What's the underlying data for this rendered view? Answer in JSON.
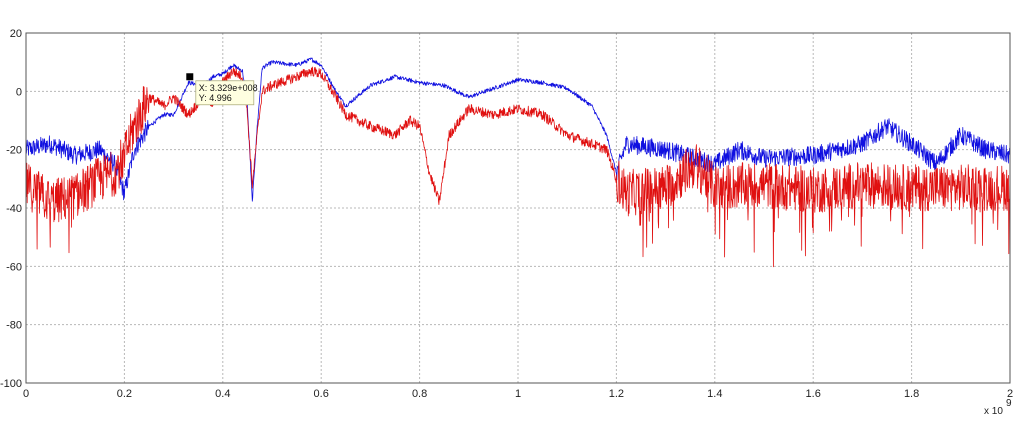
{
  "chart_data": {
    "type": "line",
    "xlim": [
      0,
      2
    ],
    "ylim": [
      -100,
      20
    ],
    "grid": true,
    "x_ticks": [
      "0",
      "0.2",
      "0.4",
      "0.6",
      "0.8",
      "1",
      "1.2",
      "1.4",
      "1.6",
      "1.8",
      "2"
    ],
    "y_ticks": [
      "20",
      "0",
      "-20",
      "-40",
      "-60",
      "-80",
      "-100"
    ],
    "x_exponent_label": "x 10",
    "x_exponent_power": "9",
    "datatip": {
      "x_text": "X: 3.329e+008",
      "y_text": "Y: 4.996",
      "x": 0.3329,
      "y": 4.996
    },
    "series": [
      {
        "color": "#1010e0",
        "noise": 4,
        "x": [
          0,
          0.05,
          0.1,
          0.15,
          0.18,
          0.2,
          0.22,
          0.25,
          0.28,
          0.3,
          0.33,
          0.36,
          0.38,
          0.4,
          0.42,
          0.44,
          0.45,
          0.46,
          0.47,
          0.48,
          0.5,
          0.55,
          0.58,
          0.6,
          0.63,
          0.65,
          0.7,
          0.75,
          0.8,
          0.85,
          0.9,
          0.95,
          1.0,
          1.05,
          1.1,
          1.15,
          1.18,
          1.2,
          1.22,
          1.3,
          1.4,
          1.45,
          1.5,
          1.6,
          1.7,
          1.75,
          1.8,
          1.85,
          1.9,
          1.95,
          2.0
        ],
        "y": [
          -20,
          -18,
          -22,
          -20,
          -25,
          -35,
          -20,
          -12,
          -8,
          -8,
          3,
          2,
          5,
          6,
          9,
          7,
          -5,
          -38,
          -12,
          8,
          10,
          9,
          11,
          9,
          0,
          -5,
          2,
          5,
          3,
          2,
          -2,
          1,
          4,
          3,
          1,
          -5,
          -15,
          -28,
          -18,
          -20,
          -25,
          -20,
          -23,
          -22,
          -18,
          -12,
          -18,
          -25,
          -15,
          -20,
          -22
        ]
      },
      {
        "color": "#e01010",
        "noise": 10,
        "x": [
          0,
          0.05,
          0.1,
          0.15,
          0.18,
          0.2,
          0.22,
          0.25,
          0.28,
          0.3,
          0.33,
          0.36,
          0.38,
          0.4,
          0.42,
          0.44,
          0.45,
          0.46,
          0.47,
          0.48,
          0.5,
          0.55,
          0.58,
          0.6,
          0.63,
          0.65,
          0.7,
          0.75,
          0.78,
          0.8,
          0.82,
          0.84,
          0.86,
          0.9,
          0.95,
          1.0,
          1.05,
          1.1,
          1.15,
          1.18,
          1.2,
          1.22,
          1.3,
          1.36,
          1.4,
          1.5,
          1.6,
          1.7,
          1.8,
          1.9,
          2.0
        ],
        "y": [
          -32,
          -38,
          -36,
          -30,
          -28,
          -22,
          -12,
          -2,
          -5,
          -2,
          -8,
          -2,
          -4,
          3,
          7,
          5,
          -8,
          -32,
          -15,
          0,
          2,
          5,
          7,
          6,
          -2,
          -8,
          -12,
          -15,
          -10,
          -12,
          -28,
          -38,
          -15,
          -6,
          -8,
          -6,
          -8,
          -15,
          -18,
          -20,
          -30,
          -35,
          -33,
          -25,
          -33,
          -32,
          -34,
          -32,
          -33,
          -33,
          -33
        ]
      }
    ]
  }
}
